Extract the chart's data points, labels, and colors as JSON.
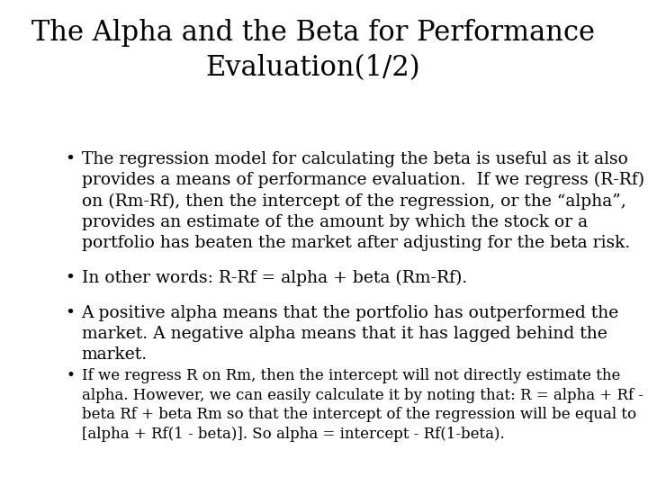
{
  "title": "The Alpha and the Beta for Performance\nEvaluation(1/2)",
  "background_color": "#ffffff",
  "title_fontsize": 22,
  "title_color": "#000000",
  "bullet_fontsize": 13.5,
  "small_bullet_fontsize": 12,
  "bullet_color": "#000000",
  "bullets": [
    {
      "size": "large",
      "text": "The regression model for calculating the beta is useful as it also provides a means of performance evaluation.  If we regress (R-Rf) on (Rm-Rf), then the intercept of the regression, or the “alpha”, provides an estimate of the amount by which the stock or a portfolio has beaten the market after adjusting for the beta risk."
    },
    {
      "size": "large",
      "text": "In other words: R-Rf = alpha + beta (Rm-Rf)."
    },
    {
      "size": "large",
      "text": "A positive alpha means that the portfolio has outperformed the market. A negative alpha means that it has lagged behind the market."
    },
    {
      "size": "small",
      "text": "If we regress R on Rm, then the intercept will not directly estimate the alpha. However, we can easily calculate it by noting that: R = alpha + Rf - beta Rf + beta Rm so that the intercept of the regression will be equal to [alpha + Rf(1 - beta)]. So alpha = intercept - Rf(1-beta)."
    }
  ]
}
